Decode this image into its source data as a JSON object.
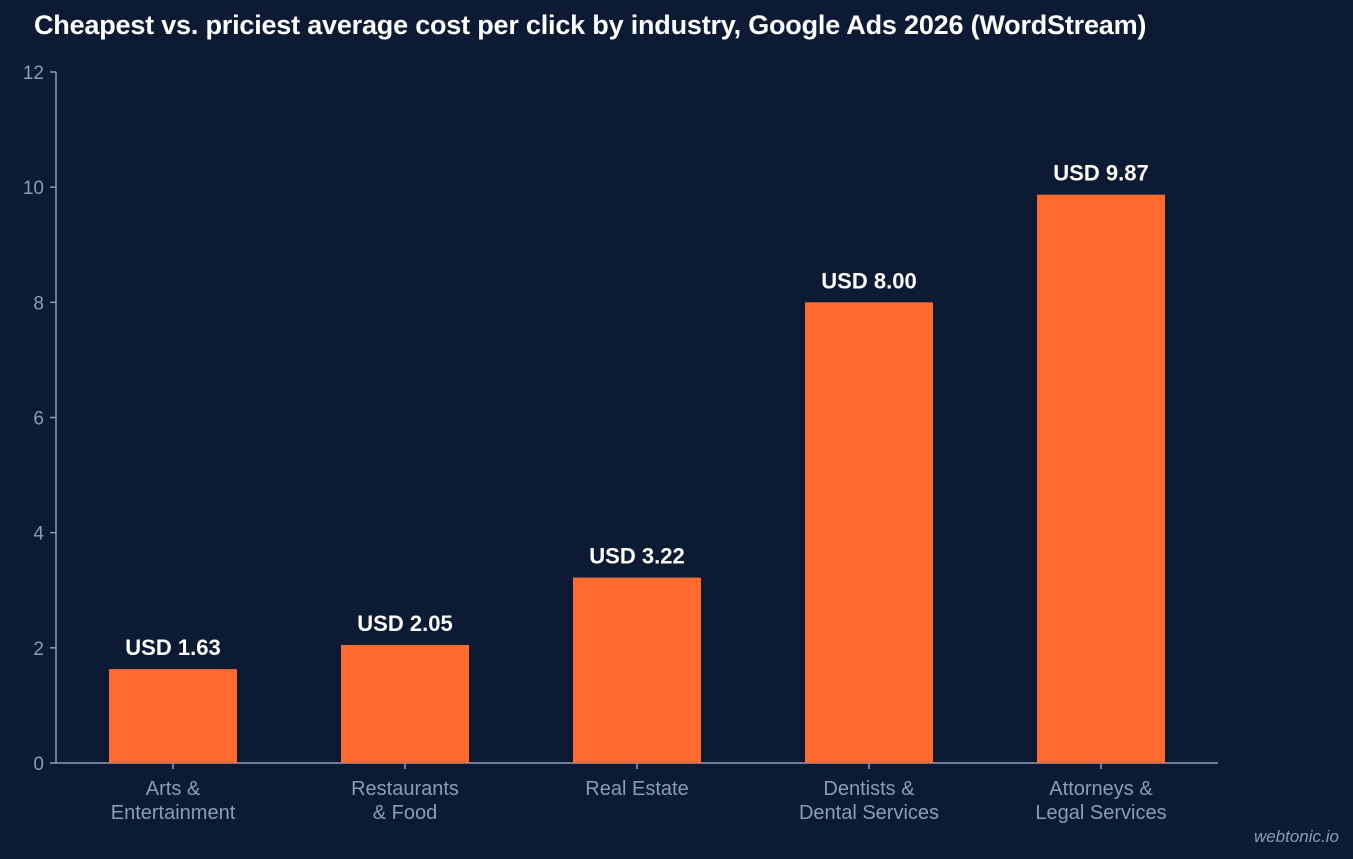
{
  "chart_data": {
    "type": "bar",
    "title": "Cheapest vs. priciest average cost per click by industry, Google Ads 2026 (WordStream)",
    "categories": [
      [
        "Arts &",
        "Entertainment"
      ],
      [
        "Restaurants",
        "& Food"
      ],
      [
        "Real Estate"
      ],
      [
        "Dentists &",
        "Dental Services"
      ],
      [
        "Attorneys &",
        "Legal Services"
      ]
    ],
    "values": [
      1.63,
      2.05,
      3.22,
      8.0,
      9.87
    ],
    "data_labels": [
      "USD 1.63",
      "USD 2.05",
      "USD 3.22",
      "USD 8.00",
      "USD 9.87"
    ],
    "yticks": [
      "0",
      "2",
      "4",
      "6",
      "8",
      "10",
      "12"
    ],
    "ylim": [
      0,
      12
    ],
    "xlabel": "",
    "ylabel": "",
    "grid": false,
    "legend": "none",
    "bar_color": "#ff6b2e",
    "background_color": "#0c1b33",
    "axis_color": "#8e9bb3"
  },
  "watermark": "webtonic.io"
}
